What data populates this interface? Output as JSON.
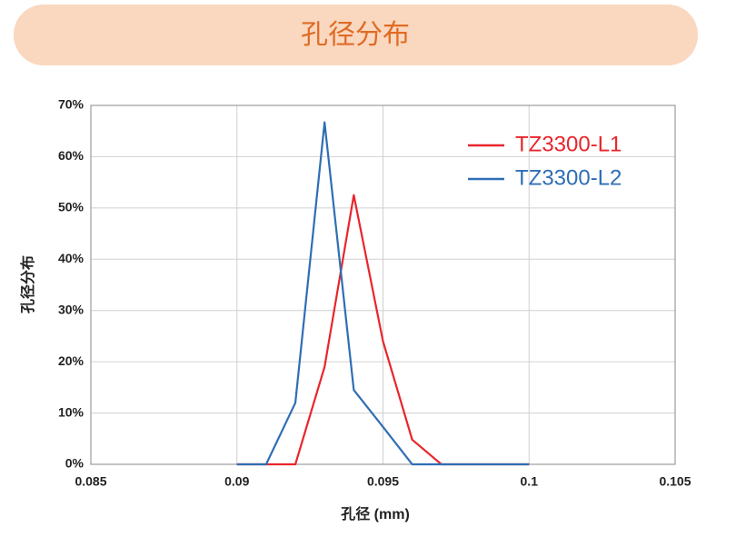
{
  "chart_data": {
    "type": "line",
    "title": "孔径分布",
    "x_label": "孔径 (mm)",
    "y_label": "孔径分布",
    "x": [
      0.09,
      0.091,
      0.092,
      0.093,
      0.094,
      0.095,
      0.096,
      0.097,
      0.098,
      0.099,
      0.1
    ],
    "series": [
      {
        "name": "TZ3300-L1",
        "color": "#e8262b",
        "values": [
          0,
          0,
          0,
          19,
          52.5,
          24,
          4.8,
          0,
          0,
          0,
          0
        ]
      },
      {
        "name": "TZ3300-L2",
        "color": "#2f6eb5",
        "values": [
          0,
          0,
          12,
          66.7,
          14.5,
          7.3,
          0,
          0,
          0,
          0,
          0
        ]
      }
    ],
    "xlim": [
      0.085,
      0.105
    ],
    "xticks": [
      0.085,
      0.09,
      0.095,
      0.1,
      0.105
    ],
    "ylim": [
      0,
      70
    ],
    "yticks": [
      {
        "value": 0,
        "label": "0%"
      },
      {
        "value": 10,
        "label": "10%"
      },
      {
        "value": 20,
        "label": "20%"
      },
      {
        "value": 30,
        "label": "30%"
      },
      {
        "value": 40,
        "label": "40%"
      },
      {
        "value": 50,
        "label": "50%"
      },
      {
        "value": 60,
        "label": "60%"
      },
      {
        "value": 70,
        "label": "70%"
      }
    ],
    "grid": true,
    "legend": "top-right"
  }
}
